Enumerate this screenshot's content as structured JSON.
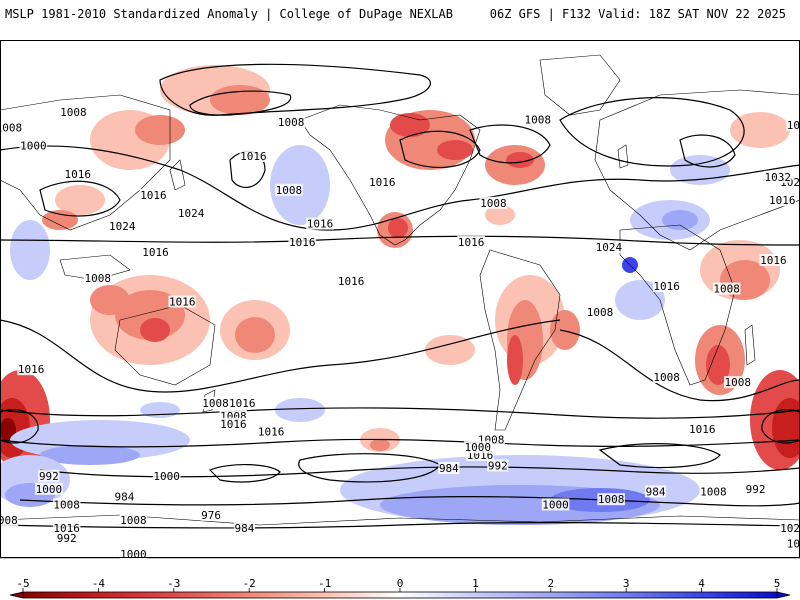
{
  "header": {
    "left_title": "MSLP 1981-2010 Standardized Anomaly | College of DuPage NEXLAB",
    "right_title": "06Z GFS | F132 Valid: 18Z SAT NOV 22 2025"
  },
  "colors": {
    "neg5": "#8b0000",
    "neg4": "#c81e1e",
    "neg3": "#e34a4a",
    "neg2": "#f08878",
    "neg1": "#fbc2b4",
    "zero": "#ffffff",
    "pos1": "#c6cdfa",
    "pos2": "#9ea6f6",
    "pos3": "#6f79f0",
    "pos4": "#3c44e8",
    "pos5": "#0b0ed0",
    "contour": "#000000",
    "coast": "#000000"
  },
  "colorbar": {
    "ticks": [
      "-5",
      "-4",
      "-3",
      "-2",
      "-1",
      "0",
      "1",
      "2",
      "3",
      "4",
      "5"
    ]
  },
  "isobar_labels": [
    {
      "text": "1008",
      "lon": -176,
      "lat": 66
    },
    {
      "text": "1000",
      "lon": -165,
      "lat": 59
    },
    {
      "text": "1008",
      "lon": -147,
      "lat": 72
    },
    {
      "text": "1016",
      "lon": -145,
      "lat": 48
    },
    {
      "text": "1016",
      "lon": -111,
      "lat": 40
    },
    {
      "text": "1024",
      "lon": -125,
      "lat": 28
    },
    {
      "text": "1016",
      "lon": -110,
      "lat": 18
    },
    {
      "text": "1024",
      "lon": -94,
      "lat": 33
    },
    {
      "text": "1016",
      "lon": -98,
      "lat": -1
    },
    {
      "text": "1008",
      "lon": -136,
      "lat": 8
    },
    {
      "text": "1016",
      "lon": -66,
      "lat": 55
    },
    {
      "text": "1008",
      "lon": -49,
      "lat": 68
    },
    {
      "text": "1016",
      "lon": -36,
      "lat": 29
    },
    {
      "text": "1016",
      "lon": -8,
      "lat": 45
    },
    {
      "text": "1008",
      "lon": -50,
      "lat": 42
    },
    {
      "text": "1016",
      "lon": -44,
      "lat": 22
    },
    {
      "text": "1008",
      "lon": 62,
      "lat": 69
    },
    {
      "text": "1016",
      "lon": -22,
      "lat": 7
    },
    {
      "text": "1008",
      "lon": 42,
      "lat": 37
    },
    {
      "text": "1016",
      "lon": 32,
      "lat": 22
    },
    {
      "text": "1008",
      "lon": 90,
      "lat": -5
    },
    {
      "text": "1024",
      "lon": 94,
      "lat": 20
    },
    {
      "text": "1016",
      "lon": 120,
      "lat": 5
    },
    {
      "text": "1008",
      "lon": 147,
      "lat": 4
    },
    {
      "text": "1016",
      "lon": 168,
      "lat": 15
    },
    {
      "text": "1016",
      "lon": 172,
      "lat": 38
    },
    {
      "text": "1024",
      "lon": 177,
      "lat": 45
    },
    {
      "text": "1032",
      "lon": 170,
      "lat": 47
    },
    {
      "text": "1016",
      "lon": 180,
      "lat": 67
    },
    {
      "text": "1008",
      "lon": 152,
      "lat": -32
    },
    {
      "text": "1008",
      "lon": 120,
      "lat": -30
    },
    {
      "text": "1016",
      "lon": -166,
      "lat": -27
    },
    {
      "text": "1016",
      "lon": 136,
      "lat": -50
    },
    {
      "text": "1016",
      "lon": 36,
      "lat": -60
    },
    {
      "text": "1016",
      "lon": -71,
      "lat": -40
    },
    {
      "text": "1008",
      "lon": -83,
      "lat": -40
    },
    {
      "text": "1016",
      "lon": -58,
      "lat": -51
    },
    {
      "text": "1008",
      "lon": 41,
      "lat": -54
    },
    {
      "text": "1008",
      "lon": -75,
      "lat": -45
    },
    {
      "text": "1000",
      "lon": 35,
      "lat": -57
    },
    {
      "text": "984",
      "lon": 22,
      "lat": -65
    },
    {
      "text": "992",
      "lon": 44,
      "lat": -64
    },
    {
      "text": "992",
      "lon": 160,
      "lat": -73
    },
    {
      "text": "1008",
      "lon": 141,
      "lat": -74
    },
    {
      "text": "1000",
      "lon": 70,
      "lat": -79
    },
    {
      "text": "1016",
      "lon": -75,
      "lat": -48
    },
    {
      "text": "992",
      "lon": -158,
      "lat": -68
    },
    {
      "text": "984",
      "lon": 115,
      "lat": -74
    },
    {
      "text": "1000",
      "lon": -105,
      "lat": -68
    },
    {
      "text": "1008",
      "lon": -120,
      "lat": -85
    },
    {
      "text": "976",
      "lon": -85,
      "lat": -83
    },
    {
      "text": "984",
      "lon": -124,
      "lat": -76
    },
    {
      "text": "1024",
      "lon": 177,
      "lat": -88
    },
    {
      "text": "992",
      "lon": -150,
      "lat": -92
    },
    {
      "text": "984",
      "lon": -70,
      "lat": -88
    },
    {
      "text": "1016",
      "lon": 180,
      "lat": -94
    },
    {
      "text": "1000",
      "lon": -120,
      "lat": -98
    },
    {
      "text": "1008",
      "lon": 95,
      "lat": -77
    },
    {
      "text": "1000",
      "lon": -158,
      "lat": -73
    },
    {
      "text": "1008",
      "lon": -150,
      "lat": -79
    },
    {
      "text": "1016",
      "lon": -150,
      "lat": -88
    },
    {
      "text": "1008",
      "lon": -178,
      "lat": -85
    }
  ]
}
